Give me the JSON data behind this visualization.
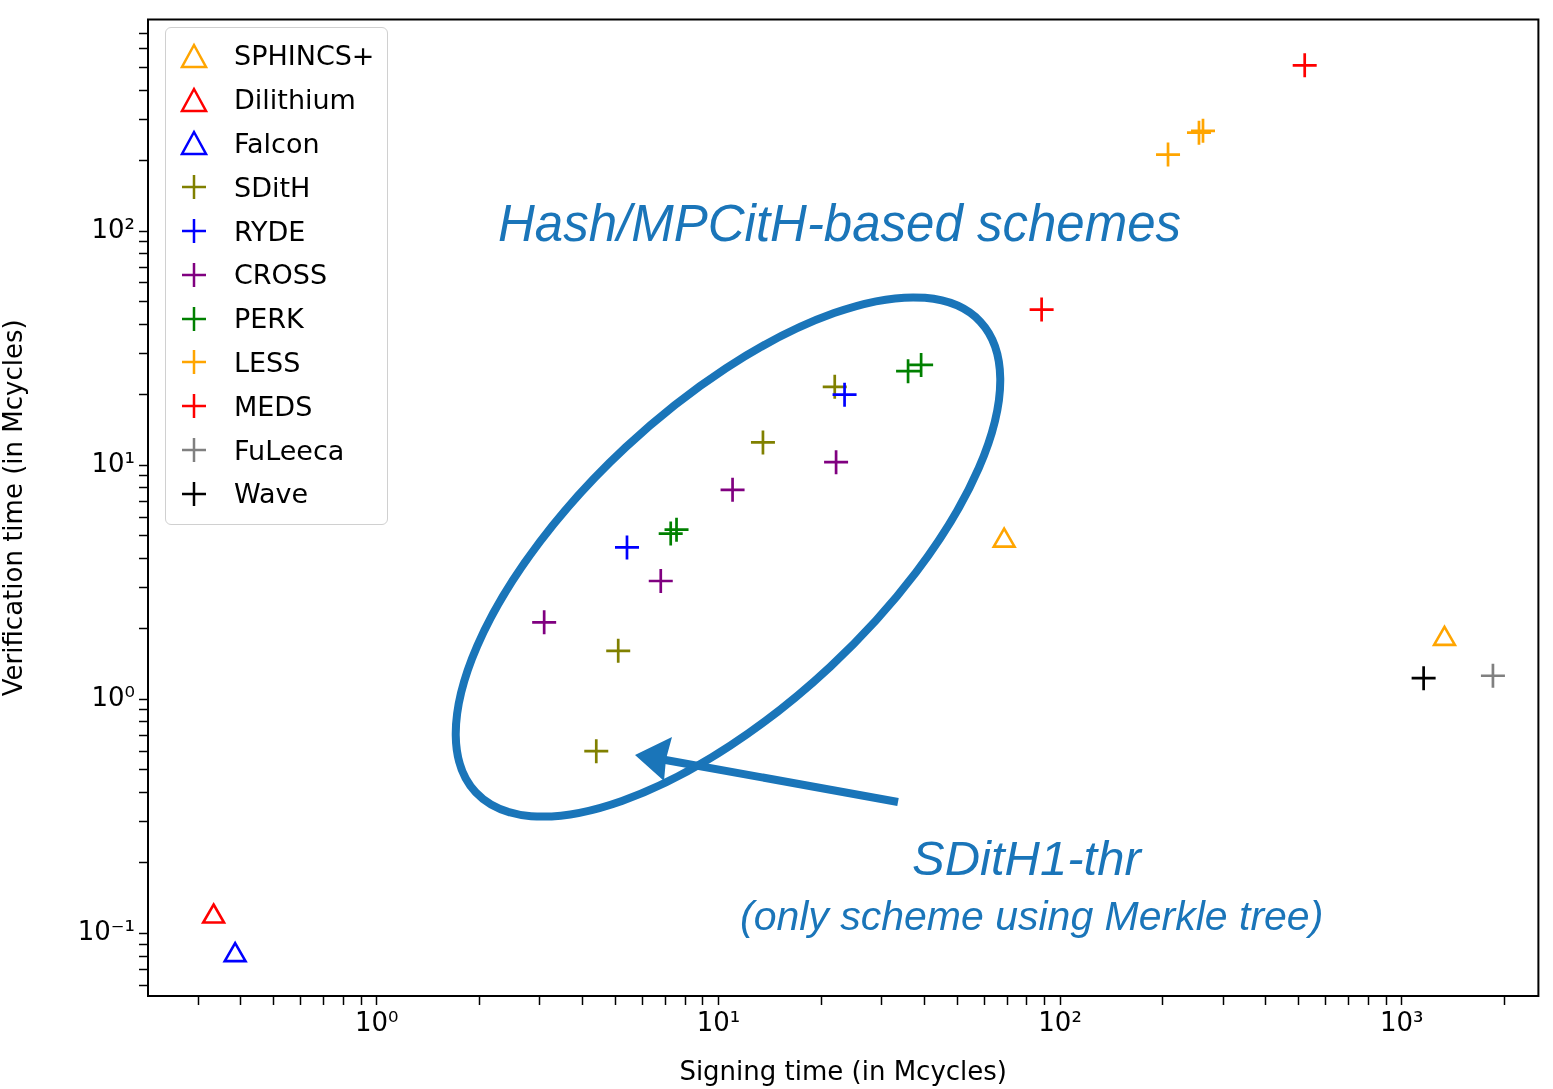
{
  "chart_data": {
    "type": "scatter",
    "xlabel": "Signing time (in Mcycles)",
    "ylabel": "Verification time (in Mcycles)",
    "log": "xy",
    "legend": "top left",
    "grid": false,
    "xlim": [
      0.214,
      2512
    ],
    "ylim": [
      0.054,
      800
    ],
    "xticks": [
      {
        "value": 0.3,
        "label": null
      },
      {
        "value": 0.4,
        "label": null
      },
      {
        "value": 0.5,
        "label": null
      },
      {
        "value": 0.6,
        "label": null
      },
      {
        "value": 0.7,
        "label": null
      },
      {
        "value": 0.8,
        "label": null
      },
      {
        "value": 0.9,
        "label": null
      },
      {
        "value": 1,
        "label": "10⁰"
      },
      {
        "value": 2,
        "label": null
      },
      {
        "value": 3,
        "label": null
      },
      {
        "value": 4,
        "label": null
      },
      {
        "value": 5,
        "label": null
      },
      {
        "value": 6,
        "label": null
      },
      {
        "value": 7,
        "label": null
      },
      {
        "value": 8,
        "label": null
      },
      {
        "value": 9,
        "label": null
      },
      {
        "value": 10,
        "label": "10¹"
      },
      {
        "value": 20,
        "label": null
      },
      {
        "value": 30,
        "label": null
      },
      {
        "value": 40,
        "label": null
      },
      {
        "value": 50,
        "label": null
      },
      {
        "value": 60,
        "label": null
      },
      {
        "value": 70,
        "label": null
      },
      {
        "value": 80,
        "label": null
      },
      {
        "value": 90,
        "label": null
      },
      {
        "value": 100,
        "label": "10²"
      },
      {
        "value": 200,
        "label": null
      },
      {
        "value": 300,
        "label": null
      },
      {
        "value": 400,
        "label": null
      },
      {
        "value": 500,
        "label": null
      },
      {
        "value": 600,
        "label": null
      },
      {
        "value": 700,
        "label": null
      },
      {
        "value": 800,
        "label": null
      },
      {
        "value": 900,
        "label": null
      },
      {
        "value": 1000,
        "label": "10³"
      },
      {
        "value": 2000,
        "label": null
      }
    ],
    "yticks": [
      {
        "value": 0.06,
        "label": null
      },
      {
        "value": 0.07,
        "label": null
      },
      {
        "value": 0.08,
        "label": null
      },
      {
        "value": 0.09,
        "label": null
      },
      {
        "value": 0.1,
        "label": "10⁻¹"
      },
      {
        "value": 0.2,
        "label": null
      },
      {
        "value": 0.3,
        "label": null
      },
      {
        "value": 0.4,
        "label": null
      },
      {
        "value": 0.5,
        "label": null
      },
      {
        "value": 0.6,
        "label": null
      },
      {
        "value": 0.7,
        "label": null
      },
      {
        "value": 0.8,
        "label": null
      },
      {
        "value": 0.9,
        "label": null
      },
      {
        "value": 1,
        "label": "10⁰"
      },
      {
        "value": 2,
        "label": null
      },
      {
        "value": 3,
        "label": null
      },
      {
        "value": 4,
        "label": null
      },
      {
        "value": 5,
        "label": null
      },
      {
        "value": 6,
        "label": null
      },
      {
        "value": 7,
        "label": null
      },
      {
        "value": 8,
        "label": null
      },
      {
        "value": 9,
        "label": null
      },
      {
        "value": 10,
        "label": "10¹"
      },
      {
        "value": 20,
        "label": null
      },
      {
        "value": 30,
        "label": null
      },
      {
        "value": 40,
        "label": null
      },
      {
        "value": 50,
        "label": null
      },
      {
        "value": 60,
        "label": null
      },
      {
        "value": 70,
        "label": null
      },
      {
        "value": 80,
        "label": null
      },
      {
        "value": 90,
        "label": null
      },
      {
        "value": 100,
        "label": "10²"
      },
      {
        "value": 200,
        "label": null
      },
      {
        "value": 300,
        "label": null
      },
      {
        "value": 400,
        "label": null
      },
      {
        "value": 500,
        "label": null
      },
      {
        "value": 600,
        "label": null
      },
      {
        "value": 700,
        "label": null
      }
    ],
    "series": [
      {
        "name": "SPHINCS+",
        "color": "#ffa500",
        "marker": "triangle",
        "x": [
          68.6,
          1334
        ],
        "values": [
          4.76,
          1.81
        ]
      },
      {
        "name": "Dilithium",
        "color": "#ff0000",
        "marker": "triangle",
        "x": [
          0.333
        ],
        "values": [
          0.118
        ]
      },
      {
        "name": "Falcon",
        "color": "#0000ff",
        "marker": "triangle",
        "x": [
          0.385
        ],
        "values": [
          0.0807
        ]
      },
      {
        "name": "SDitH",
        "color": "#808000",
        "marker": "cross",
        "x": [
          21.9,
          13.5,
          5.09,
          4.39
        ],
        "values": [
          21.6,
          12.5,
          1.61,
          0.6
        ]
      },
      {
        "name": "RYDE",
        "color": "#0000ff",
        "marker": "cross",
        "x": [
          23.4,
          5.4
        ],
        "values": [
          20,
          4.45
        ]
      },
      {
        "name": "CROSS",
        "color": "#800080",
        "marker": "cross",
        "x": [
          22.1,
          11,
          6.78,
          3.09
        ],
        "values": [
          10.3,
          7.84,
          3.2,
          2.13
        ]
      },
      {
        "name": "PERK",
        "color": "#008000",
        "marker": "cross",
        "x": [
          35.9,
          39.2,
          7.25,
          7.54
        ],
        "values": [
          25.2,
          26.8,
          5.1,
          5.3
        ]
      },
      {
        "name": "LESS",
        "color": "#ffa500",
        "marker": "cross",
        "x": [
          207,
          255,
          262
        ],
        "values": [
          212,
          263,
          268
        ]
      },
      {
        "name": "MEDS",
        "color": "#ff0000",
        "marker": "cross",
        "x": [
          520,
          88.3
        ],
        "values": [
          510,
          46.2
        ]
      },
      {
        "name": "FuLeeca",
        "color": "#808080",
        "marker": "cross",
        "x": [
          1849
        ],
        "values": [
          1.26
        ]
      },
      {
        "name": "Wave",
        "color": "#000000",
        "marker": "cross",
        "x": [
          1159
        ],
        "values": [
          1.23
        ]
      }
    ],
    "annotations": [
      "Hash/MPCitH-based schemes",
      "SDitH1-thr",
      "(only scheme using Merkle tree)"
    ]
  }
}
